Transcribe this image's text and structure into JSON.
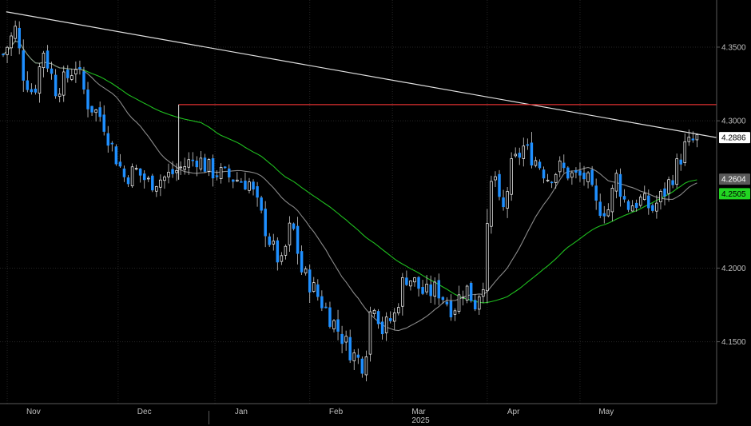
{
  "chart_data": {
    "type": "candlestick",
    "title": "",
    "xlabel": "",
    "ylabel": "",
    "ylim": [
      4.108,
      4.382
    ],
    "grid": true,
    "y_ticks": [
      {
        "value": 4.35,
        "label": "4.3500"
      },
      {
        "value": 4.3,
        "label": "4.3000"
      },
      {
        "value": 4.2,
        "label": "4.2000"
      },
      {
        "value": 4.15,
        "label": "4.1500"
      }
    ],
    "x_ticks": [
      {
        "week": 1.5,
        "label": "Nov"
      },
      {
        "week": 7,
        "label": "Dec"
      },
      {
        "week": 11.8,
        "label": "Jan"
      },
      {
        "week": 16.5,
        "label": "Feb"
      },
      {
        "week": 20.6,
        "label": "Mar"
      },
      {
        "week": 25.3,
        "label": "Apr"
      },
      {
        "week": 29.9,
        "label": "May"
      }
    ],
    "year_label": {
      "week": 20.7,
      "label": "2025"
    },
    "price_labels": [
      {
        "value": 4.2886,
        "label": "4.2886",
        "bg": "#ffffff",
        "fg": "#000000"
      },
      {
        "value": 4.2604,
        "label": "4.2604",
        "bg": "#5a5a5a",
        "fg": "#ffffff"
      },
      {
        "value": 4.2505,
        "label": "4.2505",
        "bg": "#22d622",
        "fg": "#000000"
      }
    ],
    "trendline": {
      "week_start": 0.15,
      "start": 4.374,
      "week_end": 34.9,
      "end": 4.2886,
      "color": "#e0e0e0"
    },
    "resistance": {
      "week_start": 8.7,
      "week_end": 34.9,
      "value": 4.311,
      "color": "#e03030"
    },
    "candle_colors": {
      "up": "#ffffff",
      "down": "#1e8fff"
    },
    "ma_short_color": "#8a8a8a",
    "ma_long_color": "#1fbf1f",
    "close_anchors": [
      [
        0,
        4.345
      ],
      [
        0.6,
        4.362
      ],
      [
        1.0,
        4.332
      ],
      [
        1.5,
        4.318
      ],
      [
        2.0,
        4.348
      ],
      [
        2.6,
        4.322
      ],
      [
        3.1,
        4.328
      ],
      [
        3.6,
        4.338
      ],
      [
        4.2,
        4.312
      ],
      [
        4.9,
        4.302
      ],
      [
        5.4,
        4.282
      ],
      [
        6.0,
        4.262
      ],
      [
        6.6,
        4.266
      ],
      [
        7.2,
        4.258
      ],
      [
        8.1,
        4.262
      ],
      [
        8.8,
        4.268
      ],
      [
        9.6,
        4.275
      ],
      [
        10.3,
        4.266
      ],
      [
        11.2,
        4.262
      ],
      [
        12.2,
        4.258
      ],
      [
        12.8,
        4.235
      ],
      [
        13.3,
        4.215
      ],
      [
        13.8,
        4.202
      ],
      [
        14.3,
        4.232
      ],
      [
        14.8,
        4.198
      ],
      [
        15.3,
        4.188
      ],
      [
        16.0,
        4.172
      ],
      [
        16.6,
        4.158
      ],
      [
        17.3,
        4.142
      ],
      [
        17.9,
        4.134
      ],
      [
        18.3,
        4.182
      ],
      [
        18.8,
        4.158
      ],
      [
        19.4,
        4.168
      ],
      [
        19.9,
        4.195
      ],
      [
        20.3,
        4.192
      ],
      [
        20.9,
        4.182
      ],
      [
        21.5,
        4.186
      ],
      [
        22.3,
        4.172
      ],
      [
        22.9,
        4.188
      ],
      [
        23.4,
        4.176
      ],
      [
        23.8,
        4.192
      ],
      [
        24.3,
        4.272
      ],
      [
        24.7,
        4.232
      ],
      [
        25.2,
        4.268
      ],
      [
        25.8,
        4.282
      ],
      [
        26.5,
        4.272
      ],
      [
        27.0,
        4.262
      ],
      [
        27.6,
        4.268
      ],
      [
        28.3,
        4.262
      ],
      [
        28.9,
        4.262
      ],
      [
        29.4,
        4.242
      ],
      [
        30.0,
        4.24
      ],
      [
        30.4,
        4.262
      ],
      [
        30.9,
        4.242
      ],
      [
        31.6,
        4.246
      ],
      [
        32.2,
        4.24
      ],
      [
        32.8,
        4.252
      ],
      [
        33.3,
        4.266
      ],
      [
        33.8,
        4.282
      ],
      [
        34.2,
        4.286
      ],
      [
        34.55,
        4.289
      ]
    ]
  }
}
